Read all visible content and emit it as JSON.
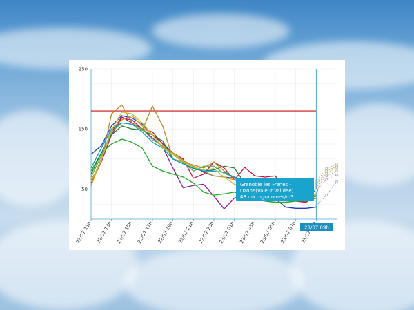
{
  "chart_data": {
    "type": "line",
    "categories": [
      "22/07 11h",
      "22/07 12h",
      "22/07 13h",
      "22/07 14h",
      "22/07 15h",
      "22/07 16h",
      "22/07 17h",
      "22/07 18h",
      "22/07 19h",
      "22/07 20h",
      "22/07 21h",
      "22/07 22h",
      "22/07 23h",
      "23/07 00h",
      "23/07 01h",
      "23/07 02h",
      "23/07 03h",
      "23/07 04h",
      "23/07 05h",
      "23/07 06h",
      "23/07 07h",
      "23/07 08h",
      "23/07 09h",
      "23/07 10h",
      "23/07 11h"
    ],
    "xtick_labels": [
      "22/07 11h",
      "22/07 13h",
      "22/07 15h",
      "22/07 17h",
      "22/07 19h",
      "22/07 21h",
      "22/07 23h",
      "23/07 01h",
      "23/07 03h",
      "23/07 05h",
      "23/07 07h",
      "23/07 09h"
    ],
    "ylim": [
      0,
      250
    ],
    "yticks": [
      50,
      150,
      250
    ],
    "threshold": {
      "value": 180,
      "color": "#cc1111"
    },
    "crosshair_x": "23/07 09h",
    "series": [
      {
        "color": "#1a3fbf",
        "values": [
          108,
          122,
          155,
          172,
          168,
          158,
          140,
          126,
          110,
          98,
          88,
          78,
          72,
          70,
          68,
          60,
          52,
          44,
          34,
          20,
          18,
          18,
          20,
          null,
          null
        ]
      },
      {
        "color": "#9b1b8a",
        "values": [
          60,
          95,
          140,
          168,
          165,
          150,
          135,
          120,
          85,
          52,
          56,
          58,
          38,
          17,
          35,
          40,
          38,
          30,
          28,
          28,
          30,
          28,
          40,
          null,
          null
        ]
      },
      {
        "color": "#cc1133",
        "values": [
          60,
          100,
          145,
          170,
          160,
          150,
          145,
          125,
          110,
          100,
          68,
          75,
          95,
          85,
          65,
          86,
          72,
          70,
          72,
          45,
          30,
          28,
          40,
          null,
          null
        ]
      },
      {
        "color": "#22aa22",
        "values": [
          80,
          110,
          125,
          133,
          128,
          118,
          88,
          80,
          75,
          70,
          60,
          45,
          40,
          42,
          45,
          40,
          35,
          30,
          28,
          28,
          30,
          30,
          35,
          null,
          null
        ]
      },
      {
        "color": "#2e7d32",
        "values": [
          75,
          110,
          140,
          155,
          150,
          148,
          140,
          130,
          100,
          92,
          85,
          80,
          82,
          88,
          85,
          60,
          45,
          40,
          38,
          38,
          38,
          36,
          38,
          null,
          null
        ]
      },
      {
        "color": "#b5882a",
        "values": [
          65,
          95,
          175,
          190,
          160,
          148,
          188,
          155,
          100,
          95,
          90,
          85,
          95,
          80,
          68,
          60,
          55,
          50,
          45,
          42,
          40,
          40,
          42,
          null,
          null
        ]
      },
      {
        "color": "#d4a020",
        "values": [
          55,
          100,
          150,
          165,
          172,
          155,
          140,
          120,
          110,
          98,
          88,
          80,
          72,
          70,
          65,
          58,
          50,
          45,
          40,
          38,
          36,
          36,
          40,
          null,
          null
        ]
      },
      {
        "color": "#6aa84f",
        "values": [
          70,
          105,
          145,
          160,
          158,
          150,
          132,
          122,
          108,
          94,
          80,
          88,
          88,
          76,
          70,
          62,
          55,
          50,
          46,
          42,
          40,
          40,
          42,
          null,
          null
        ]
      },
      {
        "color": "#00a0c0",
        "values": [
          85,
          118,
          150,
          160,
          158,
          145,
          128,
          118,
          100,
          92,
          84,
          80,
          80,
          78,
          70,
          64,
          56,
          50,
          44,
          42,
          40,
          40,
          48,
          null,
          null
        ]
      },
      {
        "color": "#c0c040",
        "values": [
          62,
          98,
          148,
          178,
          175,
          160,
          140,
          118,
          108,
          96,
          86,
          82,
          84,
          70,
          58,
          55,
          52,
          48,
          44,
          40,
          36,
          36,
          42,
          null,
          null
        ]
      },
      {
        "color": "#c8b87a",
        "values": [
          null,
          null,
          null,
          null,
          null,
          null,
          null,
          null,
          null,
          null,
          null,
          null,
          null,
          null,
          null,
          null,
          null,
          null,
          null,
          null,
          null,
          null,
          62,
          84,
          92
        ]
      },
      {
        "color": "#9bbf6a",
        "values": [
          null,
          null,
          null,
          null,
          null,
          null,
          null,
          null,
          null,
          null,
          null,
          null,
          null,
          null,
          null,
          null,
          null,
          null,
          null,
          null,
          null,
          null,
          58,
          80,
          88
        ]
      },
      {
        "color": "#e0a640",
        "values": [
          null,
          null,
          null,
          null,
          null,
          null,
          null,
          null,
          null,
          null,
          null,
          null,
          null,
          null,
          null,
          null,
          null,
          null,
          null,
          null,
          null,
          null,
          56,
          76,
          86
        ]
      },
      {
        "color": "#7ab8d8",
        "values": [
          null,
          null,
          null,
          null,
          null,
          null,
          null,
          null,
          null,
          null,
          null,
          null,
          null,
          null,
          null,
          null,
          null,
          null,
          null,
          null,
          null,
          null,
          52,
          72,
          80
        ]
      },
      {
        "color": "#d98aa0",
        "values": [
          null,
          null,
          null,
          null,
          null,
          null,
          null,
          null,
          null,
          null,
          null,
          null,
          null,
          null,
          null,
          null,
          null,
          null,
          null,
          null,
          null,
          null,
          48,
          66,
          74
        ]
      },
      {
        "color": "#8a9ad8",
        "values": [
          null,
          null,
          null,
          null,
          null,
          null,
          null,
          null,
          null,
          null,
          null,
          null,
          null,
          null,
          null,
          null,
          null,
          null,
          null,
          null,
          null,
          null,
          22,
          40,
          62
        ]
      }
    ]
  },
  "tooltip": {
    "line1": "Grenoble les Frenes -",
    "line2": "Ozone(Valeur validee)",
    "line3": "48 microgrammes/m3",
    "bg": "#1aa3cc"
  },
  "crosshair_label": {
    "text": "23/07 09h",
    "bg": "#1a8fc0"
  }
}
